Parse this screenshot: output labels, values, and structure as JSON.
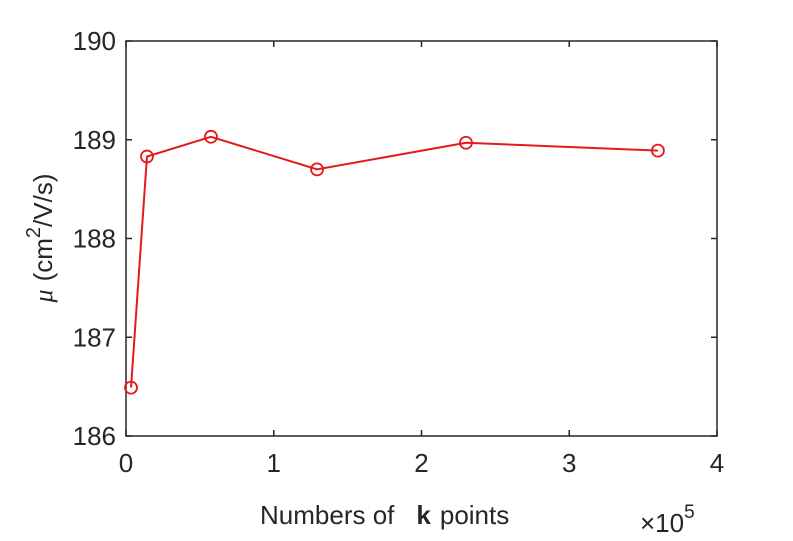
{
  "chart_data": {
    "type": "line",
    "x_label": {
      "before": "Numbers of",
      "bold": "k",
      "after": "points"
    },
    "x_multiplier": {
      "base": "×10",
      "exponent": "5"
    },
    "y_label": {
      "symbol": "μ",
      "unit_start": "(cm",
      "unit_power": "2",
      "unit_end": "/V/s)"
    },
    "x": [
      0.034,
      0.142,
      0.575,
      1.293,
      2.301,
      3.6
    ],
    "series": [
      {
        "name": "μ",
        "color": "#e31a1c",
        "values": [
          186.49,
          188.83,
          189.03,
          188.7,
          188.97,
          188.89
        ]
      }
    ],
    "xlim": [
      0,
      4
    ],
    "xticks": [
      0,
      1,
      2,
      3,
      4
    ],
    "ylim": [
      186,
      190
    ],
    "yticks": [
      186,
      187,
      188,
      189,
      190
    ],
    "grid": false,
    "marker": "circle"
  }
}
